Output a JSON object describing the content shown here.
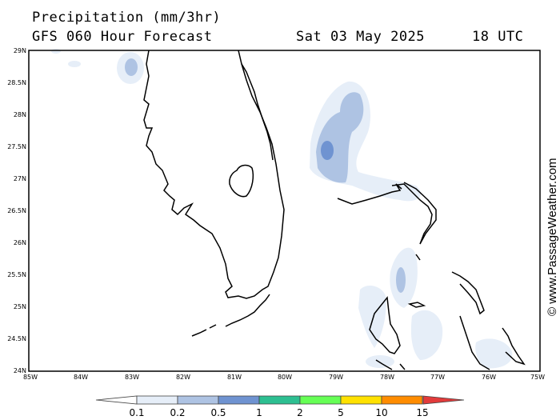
{
  "header": {
    "title": "Precipitation (mm/3hr)",
    "subtitle": "GFS 060 Hour Forecast",
    "datetime": "Sat 03 May 2025",
    "time": "18 UTC"
  },
  "axes": {
    "lat_labels": [
      "29N",
      "28.5N",
      "28N",
      "27.5N",
      "27N",
      "26.5N",
      "26N",
      "25.5N",
      "25N",
      "24.5N",
      "24N"
    ],
    "lon_labels": [
      "85W",
      "84W",
      "83W",
      "82W",
      "81W",
      "80W",
      "79W",
      "78W",
      "77W",
      "76W",
      "75W"
    ]
  },
  "watermark": "© www.PassageWeather.com",
  "legend": {
    "labels": [
      "0.1",
      "0.2",
      "0.5",
      "1",
      "2",
      "5",
      "10",
      "15"
    ],
    "colors": [
      "#e6eef8",
      "#aec3e3",
      "#6f93d1",
      "#2dbf91",
      "#66ff55",
      "#ffe100",
      "#ff8c00",
      "#e23b3b"
    ]
  }
}
